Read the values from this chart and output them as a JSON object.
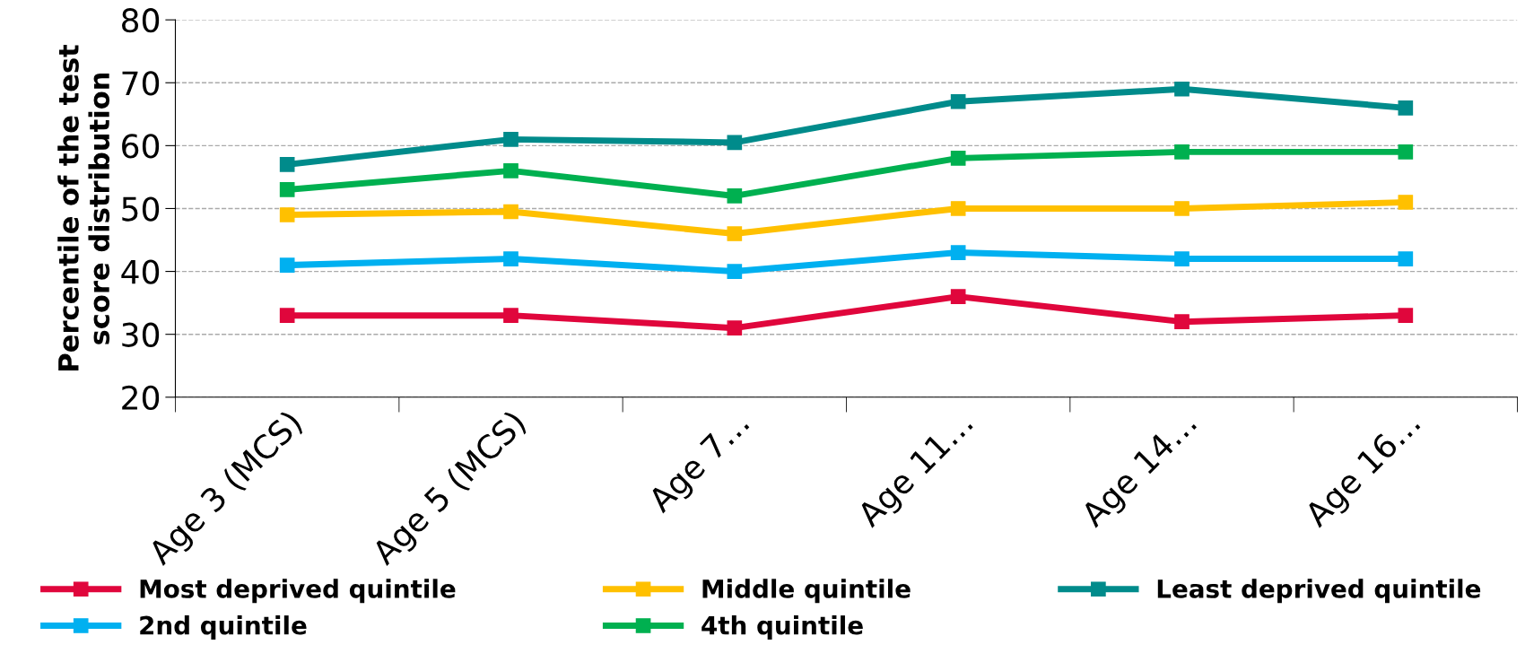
{
  "chart_data": {
    "type": "line",
    "ylabel": "Percentile of the test score distribution",
    "categories": [
      "Age 3 (MCS)",
      "Age 5 (MCS)",
      "Age 7…",
      "Age 11…",
      "Age 14…",
      "Age 16…"
    ],
    "series": [
      {
        "name": "Most deprived quintile",
        "color": "#e0063c",
        "values": [
          33,
          33,
          31,
          36,
          32,
          33
        ]
      },
      {
        "name": "2nd quintile",
        "color": "#00b0f0",
        "values": [
          41,
          42,
          40,
          43,
          42,
          42
        ]
      },
      {
        "name": "Middle quintile",
        "color": "#ffc000",
        "values": [
          49,
          49.5,
          46,
          50,
          50,
          51
        ]
      },
      {
        "name": "4th quintile",
        "color": "#00b050",
        "values": [
          53,
          56,
          52,
          58,
          59,
          59
        ]
      },
      {
        "name": "Least deprived quintile",
        "color": "#008b8b",
        "values": [
          57,
          61,
          60.5,
          67,
          69,
          66
        ]
      }
    ],
    "ylim": [
      20,
      80
    ],
    "yticks": [
      20,
      30,
      40,
      50,
      60,
      70,
      80
    ],
    "grid": "y",
    "legend": "bottom",
    "marker": "square",
    "line_style": "solid"
  }
}
